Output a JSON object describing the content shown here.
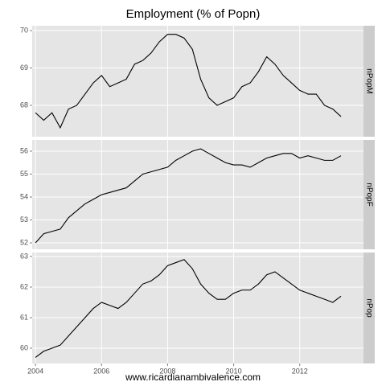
{
  "title": "Employment (% of Popn)",
  "caption": "www.ricardianambivalence.com",
  "chart_data": [
    {
      "type": "line",
      "strip": "nPopM",
      "color": "#000000",
      "grid": true,
      "x": [
        2004,
        2004.25,
        2004.5,
        2004.75,
        2005,
        2005.25,
        2005.5,
        2005.75,
        2006,
        2006.25,
        2006.5,
        2006.75,
        2007,
        2007.25,
        2007.5,
        2007.75,
        2008,
        2008.25,
        2008.5,
        2008.75,
        2009,
        2009.25,
        2009.5,
        2009.75,
        2010,
        2010.25,
        2010.5,
        2010.75,
        2011,
        2011.25,
        2011.5,
        2011.75,
        2012,
        2012.25,
        2012.5,
        2012.75,
        2013,
        2013.25
      ],
      "values": [
        67.8,
        67.6,
        67.8,
        67.4,
        67.9,
        68.0,
        68.3,
        68.6,
        68.8,
        68.5,
        68.6,
        68.7,
        69.1,
        69.2,
        69.4,
        69.7,
        69.9,
        69.9,
        69.8,
        69.5,
        68.7,
        68.2,
        68.0,
        68.1,
        68.2,
        68.5,
        68.6,
        68.9,
        69.3,
        69.1,
        68.8,
        68.6,
        68.4,
        68.3,
        68.3,
        68.0,
        67.9,
        67.7
      ],
      "xlim": [
        2003.9,
        2013.93
      ],
      "xticks": [
        2004,
        2006,
        2008,
        2010,
        2012
      ],
      "ylim": [
        67.16,
        70.13
      ],
      "yticks": [
        68,
        69,
        70
      ]
    },
    {
      "type": "line",
      "strip": "nPopF",
      "color": "#000000",
      "grid": true,
      "x": [
        2004,
        2004.25,
        2004.5,
        2004.75,
        2005,
        2005.25,
        2005.5,
        2005.75,
        2006,
        2006.25,
        2006.5,
        2006.75,
        2007,
        2007.25,
        2007.5,
        2007.75,
        2008,
        2008.25,
        2008.5,
        2008.75,
        2009,
        2009.25,
        2009.5,
        2009.75,
        2010,
        2010.25,
        2010.5,
        2010.75,
        2011,
        2011.25,
        2011.5,
        2011.75,
        2012,
        2012.25,
        2012.5,
        2012.75,
        2013,
        2013.25
      ],
      "values": [
        52.0,
        52.4,
        52.5,
        52.6,
        53.1,
        53.4,
        53.7,
        53.9,
        54.1,
        54.2,
        54.3,
        54.4,
        54.7,
        55.0,
        55.1,
        55.2,
        55.3,
        55.6,
        55.8,
        56.0,
        56.1,
        55.9,
        55.7,
        55.5,
        55.4,
        55.4,
        55.3,
        55.5,
        55.7,
        55.8,
        55.9,
        55.9,
        55.7,
        55.8,
        55.7,
        55.6,
        55.6,
        55.8
      ],
      "xlim": [
        2003.9,
        2013.93
      ],
      "xticks": [
        2004,
        2006,
        2008,
        2010,
        2012
      ],
      "ylim": [
        51.72,
        56.49
      ],
      "yticks": [
        52,
        53,
        54,
        55,
        56
      ]
    },
    {
      "type": "line",
      "strip": "nPop",
      "color": "#000000",
      "grid": true,
      "x": [
        2004,
        2004.25,
        2004.5,
        2004.75,
        2005,
        2005.25,
        2005.5,
        2005.75,
        2006,
        2006.25,
        2006.5,
        2006.75,
        2007,
        2007.25,
        2007.5,
        2007.75,
        2008,
        2008.25,
        2008.5,
        2008.75,
        2009,
        2009.25,
        2009.5,
        2009.75,
        2010,
        2010.25,
        2010.5,
        2010.75,
        2011,
        2011.25,
        2011.5,
        2011.75,
        2012,
        2012.25,
        2012.5,
        2012.75,
        2013,
        2013.25
      ],
      "values": [
        59.7,
        59.9,
        60.0,
        60.1,
        60.4,
        60.7,
        61.0,
        61.3,
        61.5,
        61.4,
        61.3,
        61.5,
        61.8,
        62.1,
        62.2,
        62.4,
        62.7,
        62.8,
        62.9,
        62.6,
        62.1,
        61.8,
        61.6,
        61.6,
        61.8,
        61.9,
        61.9,
        62.1,
        62.4,
        62.5,
        62.3,
        62.1,
        61.9,
        61.8,
        61.7,
        61.6,
        61.5,
        61.7
      ],
      "xlim": [
        2003.9,
        2013.93
      ],
      "xticks": [
        2004,
        2006,
        2008,
        2010,
        2012
      ],
      "ylim": [
        59.5,
        63.13
      ],
      "yticks": [
        60,
        61,
        62,
        63
      ]
    }
  ]
}
